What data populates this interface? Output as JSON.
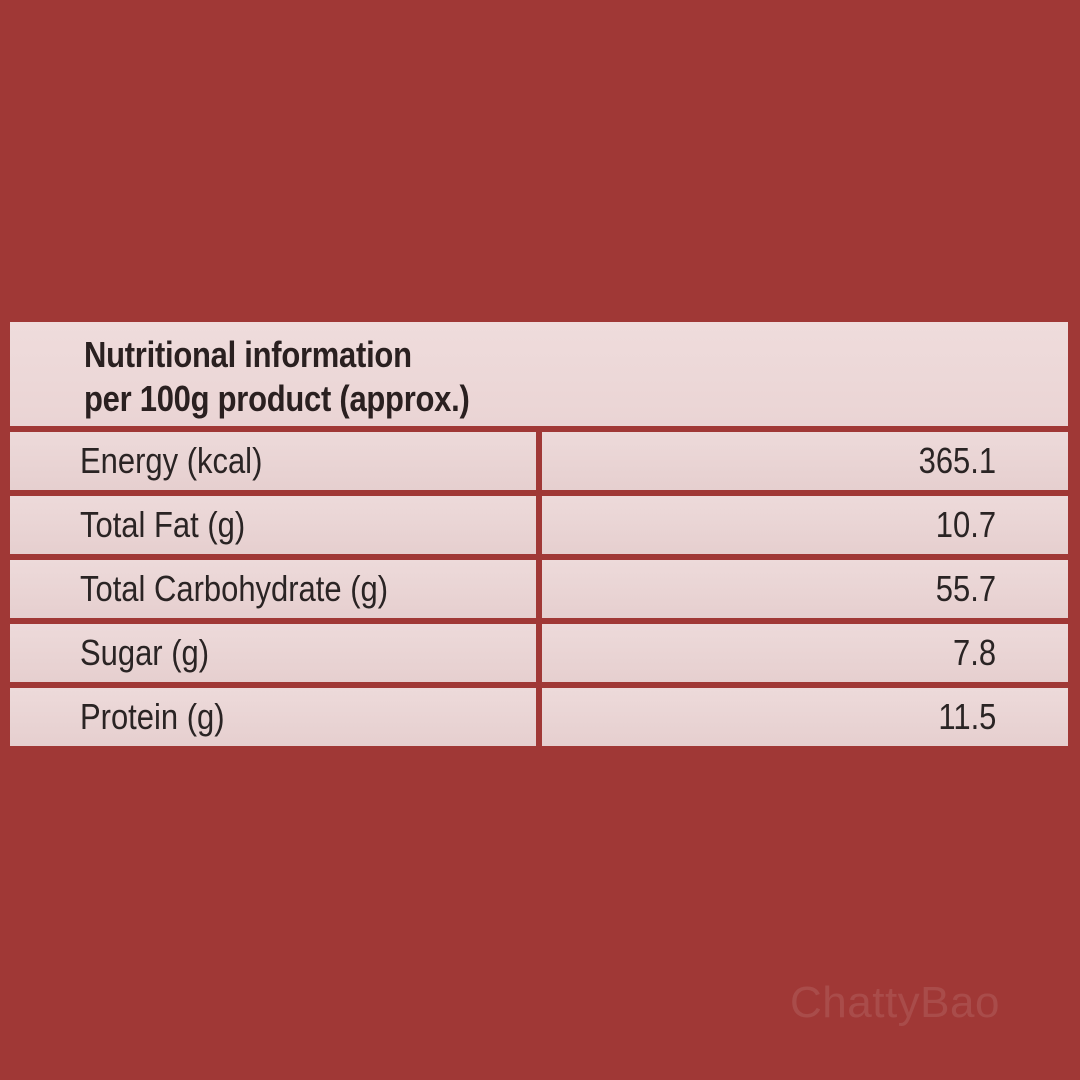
{
  "colors": {
    "background": "#a03836",
    "cell": "#eddada",
    "text": "#2a2424"
  },
  "table": {
    "title_line1": "Nutritional information",
    "title_line2": "per 100g product (approx.)",
    "rows": [
      {
        "label": "Energy (kcal)",
        "value": "365.1"
      },
      {
        "label": "Total Fat (g)",
        "value": "10.7"
      },
      {
        "label": "Total Carbohydrate (g)",
        "value": "55.7"
      },
      {
        "label": "Sugar (g)",
        "value": "7.8"
      },
      {
        "label": "Protein (g)",
        "value": "11.5"
      }
    ]
  },
  "watermark": "ChattyBao"
}
